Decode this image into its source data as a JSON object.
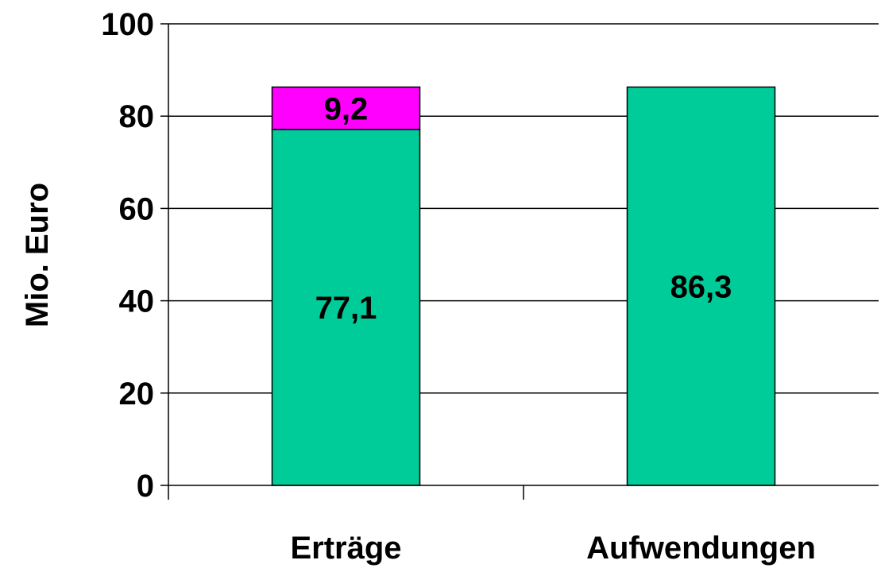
{
  "chart_data": {
    "type": "bar",
    "stacked": true,
    "categories": [
      "Erträge",
      "Aufwendungen"
    ],
    "series": [
      {
        "color": "#00CC99",
        "values": [
          77.1,
          86.3
        ],
        "labels": [
          "77,1",
          "86,3"
        ]
      },
      {
        "color": "#FF00FF",
        "values": [
          9.2,
          0
        ],
        "labels": [
          "9,2",
          ""
        ]
      }
    ],
    "ylabel": "Mio. Euro",
    "xlabel": "",
    "title": "",
    "ylim": [
      0,
      100
    ],
    "yticks": [
      0,
      20,
      40,
      60,
      80,
      100
    ],
    "ytick_labels": [
      "0",
      "20",
      "40",
      "60",
      "80",
      "100"
    ],
    "grid": true,
    "legend": "none"
  }
}
